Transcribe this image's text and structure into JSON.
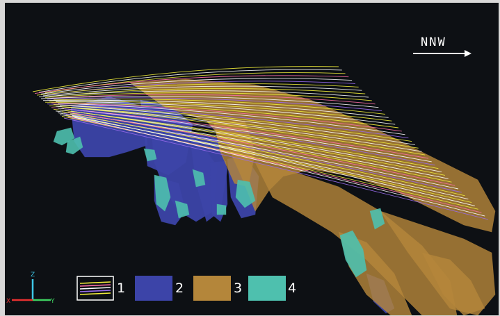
{
  "direction_label": "NNW",
  "axes": {
    "z": "Z",
    "x": "X",
    "y": "Y"
  },
  "legend": [
    {
      "label": "1",
      "kind": "lines",
      "color": "#ffffff"
    },
    {
      "label": "2",
      "kind": "fill",
      "color": "#3c44a8"
    },
    {
      "label": "3",
      "kind": "fill",
      "color": "#b4863a"
    },
    {
      "label": "4",
      "kind": "fill",
      "color": "#4ec0ae"
    }
  ],
  "colors": {
    "background": "#0d1014",
    "line_yellow": "#f2ee3a",
    "line_white": "#ffffff",
    "line_pink": "#ff6fa8",
    "line_violet": "#9a6cf0",
    "body_blue": "#3c44a8",
    "body_ochre": "#b4863a",
    "body_teal": "#4ec0ae"
  }
}
